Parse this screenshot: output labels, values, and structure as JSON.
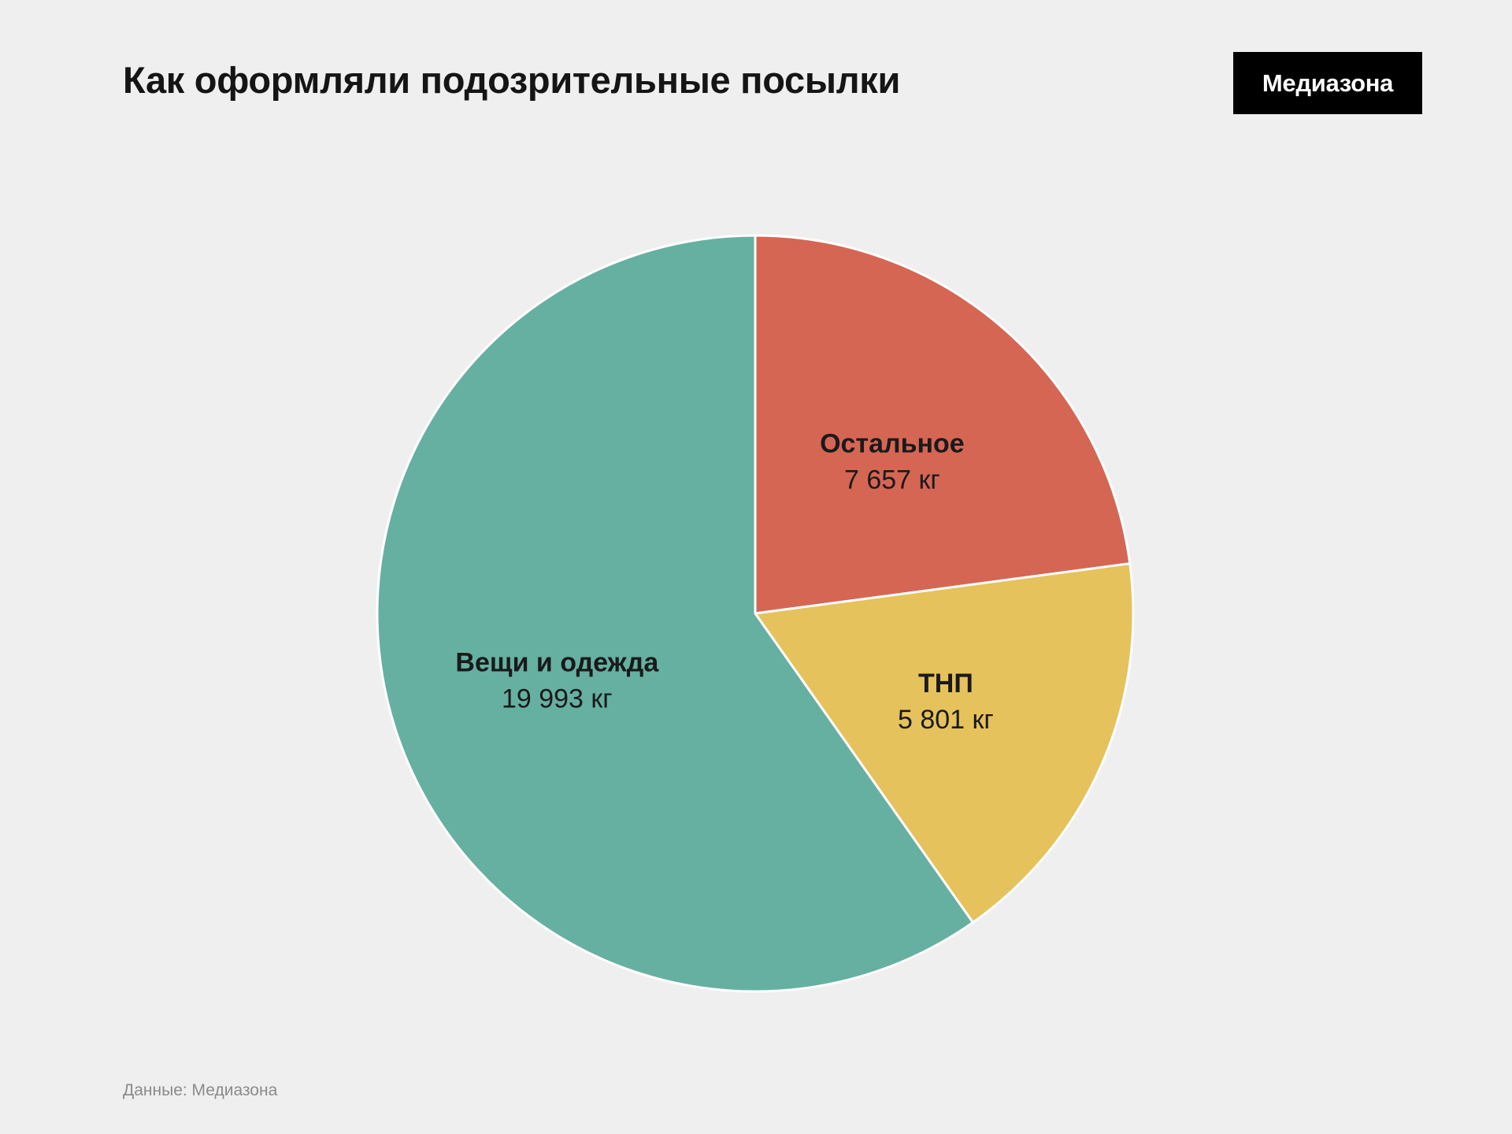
{
  "header": {
    "title": "Как оформляли подозрительные посылки",
    "logo_text": "Медиазона"
  },
  "footer": {
    "source": "Данные: Медиазона"
  },
  "chart_data": {
    "type": "pie",
    "title": "Как оформляли подозрительные посылки",
    "start_angle_deg": 0,
    "direction": "clockwise",
    "slice_border_color": "#ffffff",
    "slices": [
      {
        "label": "Остальное",
        "value": 7657,
        "value_label": "7 657 кг",
        "color": "#d66654"
      },
      {
        "label": "ТНП",
        "value": 5801,
        "value_label": "5 801 кг",
        "color": "#e5c25c"
      },
      {
        "label": "Вещи и одежда",
        "value": 19993,
        "value_label": "19 993 кг",
        "color": "#66b0a2"
      }
    ]
  }
}
